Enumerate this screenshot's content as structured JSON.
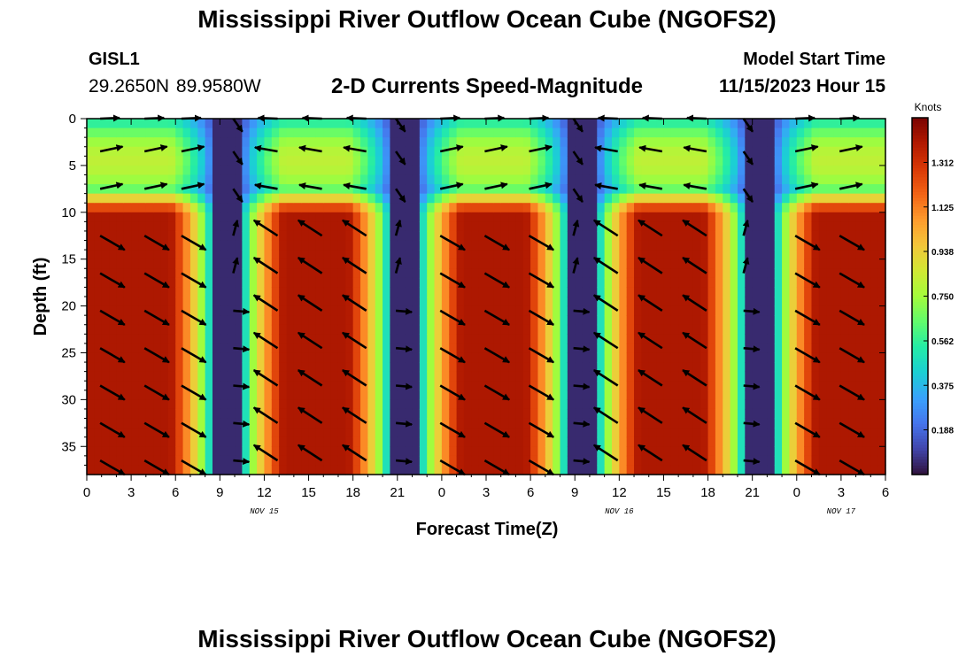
{
  "header": {
    "title": "Mississippi River Outflow Ocean Cube (NGOFS2)",
    "station_id": "GISL1",
    "station_coords": "29.2650N  89.9580W",
    "subtitle": "2-D Currents Speed-Magnitude",
    "model_start_label": "Model Start Time",
    "model_start_time": "11/15/2023 Hour 15"
  },
  "footer": {
    "title": "Mississippi River Outflow Ocean Cube (NGOFS2)"
  },
  "chart_data": {
    "type": "heatmap",
    "title": "2-D Currents Speed-Magnitude",
    "xlabel": "Forecast Time(Z)",
    "ylabel": "Depth (ft)",
    "x_range_hours": [
      0,
      54
    ],
    "x_ticks": [
      {
        "hour": 0,
        "label": "0"
      },
      {
        "hour": 3,
        "label": "3"
      },
      {
        "hour": 6,
        "label": "6"
      },
      {
        "hour": 9,
        "label": "9"
      },
      {
        "hour": 12,
        "label": "12"
      },
      {
        "hour": 15,
        "label": "15"
      },
      {
        "hour": 18,
        "label": "18"
      },
      {
        "hour": 21,
        "label": "21"
      },
      {
        "hour": 24,
        "label": "0"
      },
      {
        "hour": 27,
        "label": "3"
      },
      {
        "hour": 30,
        "label": "6"
      },
      {
        "hour": 33,
        "label": "9"
      },
      {
        "hour": 36,
        "label": "12"
      },
      {
        "hour": 39,
        "label": "15"
      },
      {
        "hour": 42,
        "label": "18"
      },
      {
        "hour": 45,
        "label": "21"
      },
      {
        "hour": 48,
        "label": "0"
      },
      {
        "hour": 51,
        "label": "3"
      },
      {
        "hour": 54,
        "label": "6"
      }
    ],
    "date_labels": [
      {
        "hour": 12,
        "label": "NOV 15"
      },
      {
        "hour": 36,
        "label": "NOV 16"
      },
      {
        "hour": 51,
        "label": "NOV 17"
      }
    ],
    "y_range_ft": [
      0,
      38
    ],
    "y_inverted": true,
    "y_ticks": [
      0,
      5,
      10,
      15,
      20,
      25,
      30,
      35
    ],
    "colorbar": {
      "label": "Knots",
      "range": [
        0.0,
        1.5
      ],
      "ticks": [
        "1.312",
        "1.125",
        "0.938",
        "0.750",
        "0.562",
        "0.375",
        "0.188"
      ],
      "colors": [
        "#30123b",
        "#4145ab",
        "#4675ed",
        "#39a2fc",
        "#1bcfd4",
        "#24eca6",
        "#61fc6c",
        "#a4fc3b",
        "#d1e834",
        "#f3c63a",
        "#fe9b2d",
        "#f36315",
        "#d93806",
        "#b11901",
        "#7a0402"
      ]
    },
    "speed_pattern": {
      "strong_layer_below_ft": 10,
      "surface_layer_ft": [
        0,
        9
      ],
      "slack_hours": [
        9.5,
        21.5,
        33.5,
        45.5
      ],
      "peak_hours": [
        2.5,
        15.5,
        27.5,
        40,
        51.5
      ],
      "max_speed_knots": 1.4
    },
    "vector_rows_ft": [
      0,
      3.5,
      7.5,
      12.5,
      16.5,
      20.5,
      24.5,
      28.5,
      32.5,
      36.5
    ],
    "vector_columns_hours": [
      1.5,
      4.5,
      7,
      10.5,
      13.5,
      16.5,
      19.5,
      21.5,
      24.5,
      27.5,
      30.5,
      33.5,
      36.5,
      39.5,
      42.5,
      45,
      48.5,
      51.5
    ],
    "vector_direction_note": "surface-layer arrows point east/northeast during ebb and west during flood; sub-surface arrows point southeast on ebb and northwest on flood"
  }
}
